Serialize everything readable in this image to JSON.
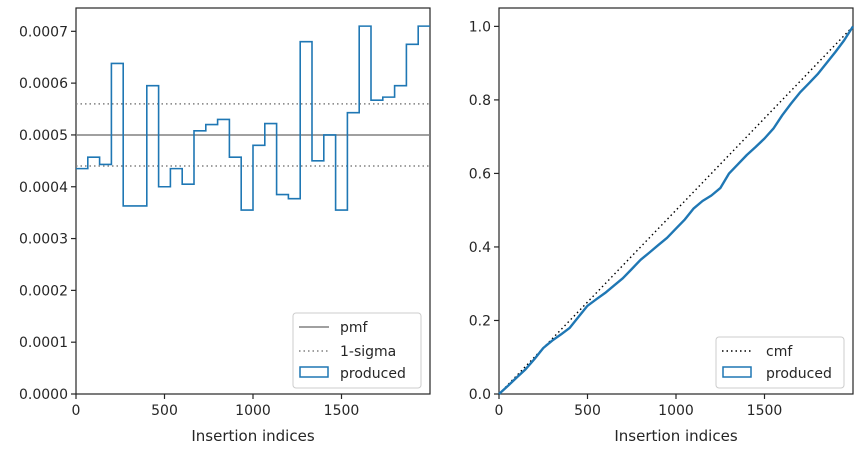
{
  "chart_data": [
    {
      "type": "histogram-step",
      "xlabel": "Insertion indices",
      "ylabel": "",
      "xlim": [
        0,
        2000
      ],
      "ylim": [
        0,
        0.000745
      ],
      "xticks": [
        0,
        500,
        1000,
        1500
      ],
      "xtick_labels": [
        "0",
        "500",
        "1000",
        "1500"
      ],
      "yticks": [
        0,
        0.0001,
        0.0002,
        0.0003,
        0.0004,
        0.0005,
        0.0006,
        0.0007
      ],
      "ytick_labels": [
        "0.0000",
        "0.0001",
        "0.0002",
        "0.0003",
        "0.0004",
        "0.0005",
        "0.0006",
        "0.0007"
      ],
      "legend_position": "lower-right",
      "legend": [
        "pmf",
        "1-sigma",
        "produced"
      ],
      "reference_lines": {
        "pmf": 0.0005,
        "sigma_upper": 0.00056,
        "sigma_lower": 0.00044
      },
      "series": [
        {
          "name": "produced",
          "bin_width": 66.67,
          "bin_starts": [
            0,
            66.67,
            133.33,
            200,
            266.67,
            333.33,
            400,
            466.67,
            533.33,
            600,
            666.67,
            733.33,
            800,
            866.67,
            933.33,
            1000,
            1066.67,
            1133.33,
            1200,
            1266.67,
            1333.33,
            1400,
            1466.67,
            1533.33,
            1600,
            1666.67,
            1733.33,
            1800,
            1866.67,
            1933.33
          ],
          "values": [
            0.000435,
            0.000457,
            0.000443,
            0.000638,
            0.000363,
            0.000363,
            0.000595,
            0.0004,
            0.000435,
            0.000405,
            0.000508,
            0.00052,
            0.00053,
            0.000457,
            0.000355,
            0.00048,
            0.000522,
            0.000385,
            0.000377,
            0.00068,
            0.00045,
            0.0005,
            0.000355,
            0.000543,
            0.00071,
            0.000567,
            0.000573,
            0.000595,
            0.000675,
            0.00071
          ]
        }
      ]
    },
    {
      "type": "line",
      "xlabel": "Insertion indices",
      "ylabel": "",
      "xlim": [
        0,
        2000
      ],
      "ylim": [
        0,
        1.05
      ],
      "xticks": [
        0,
        500,
        1000,
        1500
      ],
      "xtick_labels": [
        "0",
        "500",
        "1000",
        "1500"
      ],
      "yticks": [
        0,
        0.2,
        0.4,
        0.6,
        0.8,
        1.0
      ],
      "ytick_labels": [
        "0.0",
        "0.2",
        "0.4",
        "0.6",
        "0.8",
        "1.0"
      ],
      "legend_position": "lower-right",
      "legend": [
        "cmf",
        "produced"
      ],
      "series": [
        {
          "name": "cmf",
          "x": [
            0,
            2000
          ],
          "y": [
            0,
            1.0
          ]
        },
        {
          "name": "produced",
          "x": [
            0,
            50,
            100,
            150,
            200,
            250,
            300,
            350,
            400,
            450,
            500,
            550,
            600,
            650,
            700,
            750,
            800,
            850,
            900,
            950,
            1000,
            1050,
            1100,
            1150,
            1200,
            1250,
            1300,
            1350,
            1400,
            1450,
            1500,
            1550,
            1600,
            1650,
            1700,
            1750,
            1800,
            1850,
            1900,
            1950,
            2000
          ],
          "y": [
            0,
            0.022,
            0.045,
            0.067,
            0.095,
            0.125,
            0.145,
            0.162,
            0.18,
            0.21,
            0.24,
            0.258,
            0.275,
            0.295,
            0.315,
            0.34,
            0.365,
            0.385,
            0.405,
            0.425,
            0.45,
            0.475,
            0.505,
            0.525,
            0.54,
            0.56,
            0.6,
            0.625,
            0.65,
            0.672,
            0.695,
            0.722,
            0.758,
            0.79,
            0.82,
            0.845,
            0.87,
            0.9,
            0.93,
            0.962,
            1.0
          ]
        }
      ]
    }
  ],
  "colors": {
    "produced": "#1f77b4",
    "pmf": "#808080",
    "sigma": "#808080",
    "cmf": "#000000",
    "axes": "#262626"
  }
}
